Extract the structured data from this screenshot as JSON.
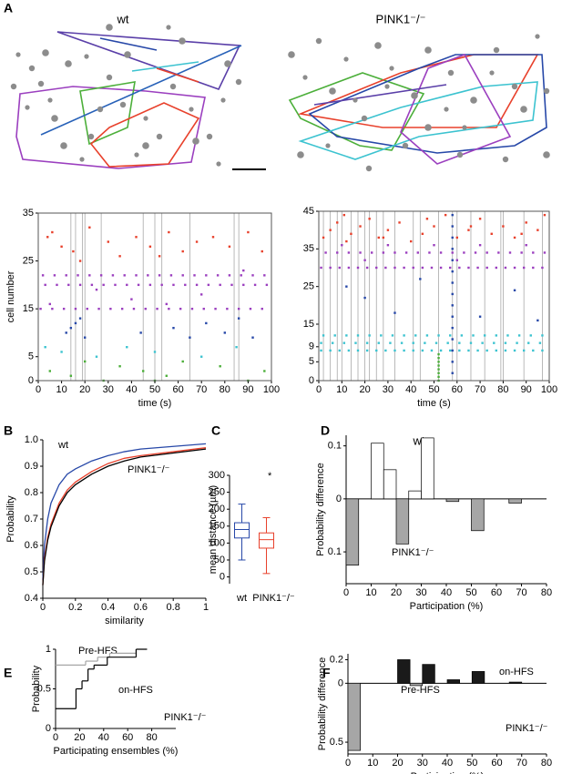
{
  "panel_a": {
    "label": "A",
    "titles": [
      "wt",
      "PINK1⁻/⁻"
    ]
  },
  "chart_data": [
    {
      "type": "raster",
      "xlabel": "time (s)",
      "ylabel": "cell number",
      "xlim": [
        0,
        100
      ],
      "xticks": [
        0,
        10,
        20,
        30,
        40,
        50,
        60,
        70,
        80,
        90,
        100
      ],
      "ylim": [
        0,
        35
      ],
      "yticks": [
        0,
        5,
        15,
        25,
        35
      ],
      "events": [
        14,
        16,
        19,
        20,
        27,
        45,
        50,
        53,
        65,
        84,
        86
      ],
      "series": [
        {
          "color": "#9b3fbf",
          "x": [
            1,
            6,
            11,
            16,
            21,
            26,
            31,
            36,
            41,
            46,
            51,
            56,
            61,
            66,
            71,
            76,
            81,
            86,
            91,
            96,
            3,
            8,
            13,
            18,
            23,
            28,
            33,
            38,
            43,
            48,
            53,
            58,
            63,
            68,
            73,
            78,
            83,
            88,
            93,
            98,
            2,
            7,
            12,
            17,
            22,
            27,
            32,
            37,
            42,
            47,
            52,
            57,
            62,
            67,
            72,
            77,
            82,
            87,
            92,
            97,
            5,
            40,
            70,
            25,
            88,
            55
          ],
          "values": [
            15,
            15,
            15,
            15,
            15,
            15,
            15,
            15,
            15,
            15,
            15,
            15,
            15,
            15,
            15,
            15,
            15,
            15,
            15,
            15,
            20,
            20,
            20,
            20,
            20,
            20,
            20,
            20,
            20,
            20,
            20,
            20,
            20,
            20,
            20,
            20,
            20,
            20,
            20,
            20,
            22,
            22,
            22,
            22,
            22,
            22,
            22,
            22,
            22,
            22,
            22,
            22,
            22,
            22,
            22,
            22,
            22,
            22,
            22,
            22,
            16,
            17,
            18,
            19,
            23,
            16
          ]
        },
        {
          "color": "#e8412c",
          "x": [
            4,
            6,
            10,
            15,
            22,
            30,
            35,
            42,
            48,
            56,
            62,
            68,
            75,
            82,
            90,
            96,
            18,
            52
          ],
          "values": [
            30,
            31,
            28,
            27,
            32,
            29,
            26,
            30,
            28,
            31,
            27,
            29,
            30,
            28,
            31,
            27,
            25,
            26
          ]
        },
        {
          "color": "#2748a8",
          "x": [
            12,
            14,
            16,
            20,
            18,
            44,
            58,
            65,
            72,
            80,
            86,
            92
          ],
          "values": [
            10,
            11,
            12,
            9,
            13,
            10,
            11,
            9,
            12,
            10,
            13,
            9
          ]
        },
        {
          "color": "#3cc3d0",
          "x": [
            3,
            10,
            25,
            38,
            50,
            70,
            85
          ],
          "values": [
            7,
            6,
            5,
            7,
            6,
            5,
            7
          ]
        },
        {
          "color": "#4caf3a",
          "x": [
            5,
            14,
            20,
            28,
            35,
            45,
            55,
            62,
            78,
            90,
            97,
            50
          ],
          "values": [
            2,
            1,
            4,
            0,
            3,
            2,
            1,
            4,
            3,
            0,
            2,
            0
          ]
        }
      ]
    },
    {
      "type": "raster",
      "xlabel": "time (s)",
      "xlim": [
        0,
        100
      ],
      "xticks": [
        0,
        10,
        20,
        30,
        40,
        50,
        60,
        70,
        80,
        90,
        100
      ],
      "ylim": [
        0,
        45
      ],
      "yticks": [
        0,
        5,
        9,
        15,
        25,
        35,
        45
      ],
      "events": [
        2,
        5,
        8,
        10,
        14,
        17,
        20,
        22,
        25,
        28,
        33,
        41,
        44,
        52,
        58,
        60,
        66,
        72,
        79,
        80,
        89,
        97
      ],
      "series": [
        {
          "color": "#e8412c",
          "x": [
            2,
            5,
            8,
            11,
            14,
            18,
            22,
            26,
            30,
            35,
            40,
            45,
            50,
            55,
            60,
            65,
            70,
            75,
            80,
            85,
            90,
            95,
            98,
            12,
            28,
            47,
            66,
            88
          ],
          "values": [
            38,
            40,
            42,
            44,
            39,
            41,
            43,
            38,
            40,
            42,
            37,
            39,
            41,
            44,
            38,
            40,
            43,
            39,
            41,
            38,
            42,
            40,
            44,
            37,
            38,
            43,
            41,
            39
          ]
        },
        {
          "color": "#9b3fbf",
          "x": [
            1,
            5,
            9,
            13,
            17,
            21,
            25,
            29,
            33,
            37,
            41,
            45,
            49,
            53,
            57,
            61,
            65,
            69,
            73,
            77,
            81,
            85,
            89,
            93,
            97,
            3,
            8,
            13,
            18,
            23,
            28,
            33,
            38,
            43,
            48,
            53,
            58,
            63,
            68,
            73,
            78,
            83,
            88,
            93,
            98,
            10,
            30,
            50,
            70,
            90,
            20,
            60
          ],
          "values": [
            30,
            30,
            30,
            30,
            30,
            30,
            30,
            30,
            30,
            30,
            30,
            30,
            30,
            30,
            30,
            30,
            30,
            30,
            30,
            30,
            30,
            30,
            30,
            30,
            30,
            34,
            34,
            34,
            34,
            34,
            34,
            34,
            34,
            34,
            34,
            34,
            34,
            34,
            34,
            34,
            34,
            34,
            34,
            34,
            34,
            36,
            36,
            36,
            36,
            36,
            32,
            32
          ]
        },
        {
          "color": "#2748a8",
          "x": [
            58,
            58,
            58,
            58,
            58,
            58,
            58,
            58,
            58,
            58,
            58,
            58,
            58,
            58,
            58,
            12,
            20,
            33,
            44,
            70,
            85,
            95
          ],
          "values": [
            2,
            5,
            8,
            11,
            14,
            17,
            20,
            23,
            26,
            29,
            32,
            35,
            38,
            41,
            44,
            25,
            22,
            18,
            27,
            17,
            24,
            16
          ]
        },
        {
          "color": "#3cc3d0",
          "x": [
            1,
            5,
            9,
            13,
            17,
            21,
            25,
            29,
            33,
            37,
            41,
            45,
            49,
            53,
            57,
            61,
            65,
            69,
            73,
            77,
            81,
            85,
            89,
            93,
            97,
            1,
            6,
            11,
            16,
            21,
            26,
            31,
            36,
            41,
            46,
            51,
            56,
            61,
            66,
            71,
            76,
            81,
            86,
            91,
            96,
            2,
            7,
            12,
            17,
            22,
            27,
            32,
            37,
            42,
            47,
            52,
            57,
            62,
            67,
            72,
            77,
            82,
            87,
            92,
            97
          ],
          "values": [
            8,
            8,
            8,
            8,
            8,
            8,
            8,
            8,
            8,
            8,
            8,
            8,
            8,
            8,
            8,
            8,
            8,
            8,
            8,
            8,
            8,
            8,
            8,
            8,
            8,
            10,
            10,
            10,
            10,
            10,
            10,
            10,
            10,
            10,
            10,
            10,
            10,
            10,
            10,
            10,
            10,
            10,
            10,
            10,
            10,
            12,
            12,
            12,
            12,
            12,
            12,
            12,
            12,
            12,
            12,
            12,
            12,
            12,
            12,
            12,
            12,
            12,
            12,
            12,
            12
          ]
        },
        {
          "color": "#4caf3a",
          "x": [
            52,
            52,
            52,
            52,
            52,
            52,
            52,
            52
          ],
          "values": [
            0,
            1,
            2,
            3,
            4,
            5,
            6,
            7
          ]
        }
      ]
    },
    {
      "type": "line",
      "panel": "B",
      "xlabel": "similarity",
      "ylabel": "Probability",
      "xlim": [
        0,
        1
      ],
      "xticks": [
        0,
        0.2,
        0.4,
        0.6,
        0.8,
        1
      ],
      "ylim": [
        0.4,
        1
      ],
      "yticks": [
        {
          "value": 1.0,
          "label": "1.0"
        },
        0.9,
        0.8,
        0.7,
        0.6,
        0.5,
        0.4
      ],
      "series": [
        {
          "name": "wt",
          "color": "#2748a8",
          "x": [
            0,
            0.01,
            0.03,
            0.05,
            0.1,
            0.15,
            0.2,
            0.3,
            0.4,
            0.5,
            0.6,
            0.8,
            1
          ],
          "values": [
            0.47,
            0.6,
            0.7,
            0.76,
            0.83,
            0.87,
            0.89,
            0.92,
            0.94,
            0.955,
            0.965,
            0.975,
            0.985
          ]
        },
        {
          "name": "PINK1⁻/⁻",
          "color": "#e8412c",
          "x": [
            0,
            0.01,
            0.03,
            0.05,
            0.1,
            0.15,
            0.2,
            0.3,
            0.4,
            0.5,
            0.6,
            0.8,
            1
          ],
          "values": [
            0.45,
            0.55,
            0.63,
            0.68,
            0.76,
            0.81,
            0.84,
            0.88,
            0.91,
            0.93,
            0.94,
            0.955,
            0.97
          ]
        },
        {
          "color": "#000000",
          "x": [
            0,
            0.01,
            0.03,
            0.05,
            0.1,
            0.15,
            0.2,
            0.3,
            0.4,
            0.5,
            0.6,
            0.8,
            1
          ],
          "values": [
            0.45,
            0.54,
            0.62,
            0.67,
            0.75,
            0.8,
            0.83,
            0.87,
            0.9,
            0.92,
            0.935,
            0.95,
            0.965
          ]
        }
      ]
    },
    {
      "type": "box",
      "panel": "C",
      "ylabel": "mean distance (µm)",
      "categories": [
        "wt",
        "PINK1⁻/⁻"
      ],
      "ylim": [
        -20,
        300
      ],
      "yticks": [
        0,
        50,
        100,
        150,
        200,
        250,
        300
      ],
      "annotations": [
        "*"
      ],
      "boxes": [
        {
          "color": "#2748a8",
          "min": 50,
          "q1": 115,
          "median": 140,
          "q3": 160,
          "max": 215
        },
        {
          "color": "#e8412c",
          "min": 10,
          "q1": 85,
          "median": 110,
          "q3": 130,
          "max": 175
        }
      ]
    },
    {
      "type": "bar",
      "panel": "D",
      "title": "wt",
      "xlabel": "Participation (%)",
      "ylabel": "Probability difference",
      "xlim": [
        0,
        80
      ],
      "xticks": [
        0,
        10,
        20,
        30,
        40,
        50,
        60,
        70,
        80
      ],
      "ylim": [
        -0.16,
        0.12
      ],
      "yticks": [
        0.1,
        0,
        {
          "value": -0.1,
          "label": "0.1"
        }
      ],
      "series": [
        {
          "color": "#ffffff",
          "x": [
            12.5,
            17.5,
            27.5,
            32.5
          ],
          "values": [
            0.105,
            0.055,
            0.015,
            0.115
          ]
        },
        {
          "name": "PINK1⁻/⁻",
          "color": "#a6a6a6",
          "x": [
            2.5,
            22.5,
            42.5,
            52.5,
            67.5
          ],
          "values": [
            -0.125,
            -0.085,
            -0.005,
            -0.06,
            -0.008
          ]
        }
      ]
    },
    {
      "type": "step",
      "panel": "E",
      "xlabel": "Participating ensembles (%)",
      "ylabel": "Probability",
      "xlim": [
        0,
        100
      ],
      "xticks": [
        0,
        20,
        40,
        60,
        80
      ],
      "ylim": [
        0,
        1
      ],
      "yticks": [
        0,
        0.5,
        1
      ],
      "annotations": [
        "PINK1⁻/⁻"
      ],
      "series": [
        {
          "name": "Pre-HFS",
          "color": "#a6a6a6",
          "x": [
            0,
            25,
            35,
            45,
            67
          ],
          "values": [
            0.8,
            0.85,
            0.9,
            0.95,
            1
          ]
        },
        {
          "name": "on-HFS",
          "color": "#000000",
          "x": [
            0,
            17,
            22,
            27,
            32,
            43,
            67
          ],
          "values": [
            0.25,
            0.5,
            0.6,
            0.75,
            0.8,
            0.9,
            1
          ]
        }
      ]
    },
    {
      "type": "bar",
      "panel": "F",
      "xlabel": "Participation (%)",
      "ylabel": "Probability difference",
      "xlim": [
        0,
        80
      ],
      "xticks": [
        0,
        10,
        20,
        30,
        40,
        50,
        60,
        70,
        80
      ],
      "ylim": [
        -0.6,
        0.25
      ],
      "yticks": [
        0.2,
        0,
        {
          "value": -0.5,
          "label": "0.5"
        }
      ],
      "annotations": [
        "PINK1⁻/⁻"
      ],
      "series": [
        {
          "name": "on-HFS",
          "color": "#1a1a1a",
          "x": [
            22.5,
            32.5,
            42.5,
            52.5,
            67.5
          ],
          "values": [
            0.2,
            0.16,
            0.03,
            0.1,
            0.01
          ]
        },
        {
          "name": "Pre-HFS",
          "color": "#a6a6a6",
          "x": [
            2.5,
            27.5
          ],
          "values": [
            -0.57,
            -0.02
          ]
        }
      ]
    }
  ]
}
